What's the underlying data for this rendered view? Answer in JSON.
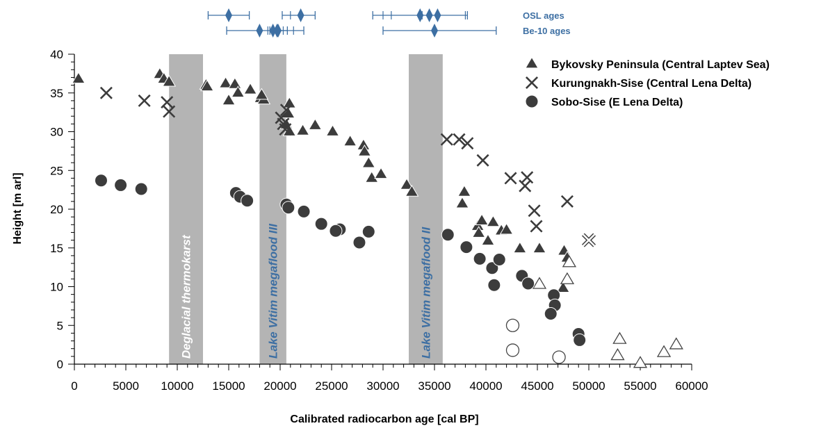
{
  "colors": {
    "marker_dark": "#3c3c3c",
    "marker_outline": "#444444",
    "band": "#b4b4b4",
    "accent_blue": "#3d6fa3",
    "band_label_white": "#ffffff"
  },
  "chart_data": {
    "type": "scatter",
    "xlabel": "Calibrated radiocarbon age [cal BP]",
    "ylabel": "Height [m arl]",
    "xlim": [
      0,
      60000
    ],
    "ylim": [
      0,
      40
    ],
    "x_ticks": [
      "0",
      "5000",
      "10000",
      "15000",
      "20000",
      "25000",
      "30000",
      "35000",
      "40000",
      "45000",
      "50000",
      "55000",
      "60000"
    ],
    "y_ticks": [
      "0",
      "5",
      "10",
      "15",
      "20",
      "25",
      "30",
      "35",
      "40"
    ],
    "legend_position": "top-right",
    "bands": [
      {
        "label": "Deglacial thermokarst",
        "from": 9200,
        "to": 12500,
        "label_color": "white"
      },
      {
        "label": "Lake Vitim megaflood III",
        "from": 18000,
        "to": 20600,
        "label_color": "blue"
      },
      {
        "label": "Lake Vitim megaflood II",
        "from": 32500,
        "to": 35800,
        "label_color": "blue"
      }
    ],
    "age_ranges": [
      {
        "label": "OSL ages",
        "ranges": [
          {
            "center": 15000,
            "from": 13000,
            "to": 17000,
            "ticks": []
          },
          {
            "center": 22000,
            "from": 20200,
            "to": 23400,
            "ticks": [
              21000
            ]
          },
          {
            "center": 34500,
            "from": 29000,
            "to": 38200,
            "ticks": [
              30000,
              30800,
              33800,
              35300,
              38000
            ]
          }
        ]
      },
      {
        "label": "Be-10 ages",
        "ranges": [
          {
            "center": 18000,
            "from": 14800,
            "to": 22300,
            "ticks": [
              18800,
              19300,
              19600,
              20300,
              21300
            ]
          },
          {
            "center": 19800,
            "from": 19000,
            "to": 20700,
            "ticks": []
          },
          {
            "center": 35000,
            "from": 30000,
            "to": 41000,
            "ticks": []
          }
        ]
      }
    ],
    "series": [
      {
        "name": "Bykovsky Peninsula (Central Laptev Sea)",
        "marker": "triangle",
        "points": [
          [
            400,
            36.8
          ],
          [
            8300,
            37.4
          ],
          [
            8700,
            36.8
          ],
          [
            9200,
            36.4
          ],
          [
            12800,
            36
          ],
          [
            12900,
            35.8
          ],
          [
            14700,
            36.2
          ],
          [
            15000,
            34
          ],
          [
            15600,
            36.1
          ],
          [
            15900,
            35
          ],
          [
            17100,
            35.4
          ],
          [
            18100,
            34.3
          ],
          [
            18400,
            34.1
          ],
          [
            18200,
            34.7
          ],
          [
            20900,
            33.6
          ],
          [
            20800,
            32.3
          ],
          [
            20600,
            30.9
          ],
          [
            20900,
            30
          ],
          [
            22200,
            30.1
          ],
          [
            23400,
            30.8
          ],
          [
            25100,
            30
          ],
          [
            26800,
            28.7
          ],
          [
            28100,
            28.2
          ],
          [
            28200,
            27.4
          ],
          [
            28600,
            25.9
          ],
          [
            28900,
            24
          ],
          [
            29800,
            24.5
          ],
          [
            32300,
            23.1
          ],
          [
            32800,
            22.2
          ],
          [
            37900,
            22.2
          ],
          [
            37700,
            20.7
          ],
          [
            39200,
            17.8
          ],
          [
            39600,
            18.5
          ],
          [
            40700,
            18.3
          ],
          [
            41500,
            17.2
          ],
          [
            42000,
            17.3
          ],
          [
            39300,
            16.9
          ],
          [
            40200,
            15.9
          ],
          [
            43300,
            14.9
          ],
          [
            45200,
            14.9
          ],
          [
            47600,
            14.6
          ],
          [
            47900,
            13.7
          ],
          [
            47500,
            9.8
          ]
        ],
        "hollow_points": [
          [
            45200,
            10.3
          ],
          [
            48100,
            13.1
          ],
          [
            47900,
            10.9
          ],
          [
            53000,
            3.2
          ],
          [
            52800,
            1.1
          ],
          [
            55000,
            0.1
          ],
          [
            57300,
            1.5
          ],
          [
            58500,
            2.5
          ]
        ]
      },
      {
        "name": "Kurungnakh-Sise (Central Lena Delta)",
        "marker": "x",
        "points": [
          [
            3100,
            35
          ],
          [
            6800,
            34
          ],
          [
            9000,
            33.8
          ],
          [
            9200,
            32.6
          ],
          [
            20100,
            31.8
          ],
          [
            20300,
            31
          ],
          [
            20500,
            30.3
          ],
          [
            20600,
            32.8
          ],
          [
            36200,
            29
          ],
          [
            37400,
            29
          ],
          [
            38200,
            28.5
          ],
          [
            39700,
            26.3
          ],
          [
            42400,
            24
          ],
          [
            44000,
            24.1
          ],
          [
            43800,
            23
          ],
          [
            44700,
            19.8
          ],
          [
            44900,
            17.8
          ],
          [
            47900,
            21
          ],
          [
            50000,
            16
          ]
        ],
        "hollow_points": [
          [
            50000,
            16
          ]
        ]
      },
      {
        "name": "Sobo-Sise (E Lena Delta)",
        "marker": "circle",
        "points": [
          [
            2600,
            23.7
          ],
          [
            4500,
            23.1
          ],
          [
            6500,
            22.6
          ],
          [
            15700,
            22.1
          ],
          [
            16100,
            21.6
          ],
          [
            16800,
            21.1
          ],
          [
            20600,
            20.6
          ],
          [
            20800,
            20.2
          ],
          [
            22300,
            19.7
          ],
          [
            24000,
            18.1
          ],
          [
            25800,
            17.4
          ],
          [
            25400,
            17.2
          ],
          [
            27700,
            15.7
          ],
          [
            28600,
            17.1
          ],
          [
            36300,
            16.7
          ],
          [
            38100,
            15.1
          ],
          [
            39400,
            13.6
          ],
          [
            40600,
            12.4
          ],
          [
            41300,
            13.5
          ],
          [
            40800,
            10.2
          ],
          [
            43500,
            11.4
          ],
          [
            44100,
            10.4
          ],
          [
            46600,
            8.9
          ],
          [
            46700,
            7.6
          ],
          [
            46300,
            6.5
          ],
          [
            49000,
            3.9
          ],
          [
            49100,
            3.1
          ]
        ],
        "hollow_points": [
          [
            42600,
            5
          ],
          [
            42600,
            1.8
          ],
          [
            47100,
            0.9
          ]
        ]
      }
    ]
  }
}
